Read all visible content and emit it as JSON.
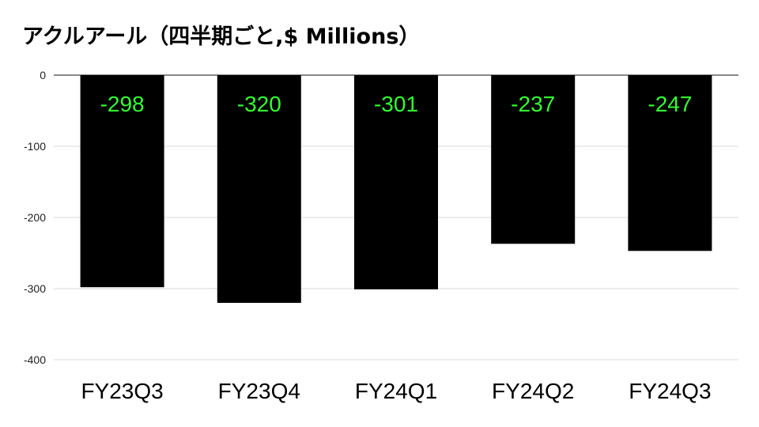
{
  "title": "アクルアール（四半期ごと,$ Millions）",
  "chart_data": {
    "type": "bar",
    "title": "アクルアール（四半期ごと,$ Millions）",
    "xlabel": "",
    "ylabel": "",
    "categories": [
      "FY23Q3",
      "FY23Q4",
      "FY24Q1",
      "FY24Q2",
      "FY24Q3"
    ],
    "values": [
      -298,
      -320,
      -301,
      -237,
      -247
    ],
    "data_labels": [
      "-298",
      "-320",
      "-301",
      "-237",
      "-247"
    ],
    "ylim": [
      -400,
      0
    ],
    "yticks": [
      0,
      -100,
      -200,
      -300,
      -400
    ],
    "ytick_labels": [
      "0",
      "-100",
      "-200",
      "-300",
      "-400"
    ],
    "grid": true,
    "legend": "none",
    "colors": {
      "bar": "#000000",
      "data_label": "#33ff33",
      "grid": "#d9d9d9",
      "axis": "#444444"
    }
  }
}
